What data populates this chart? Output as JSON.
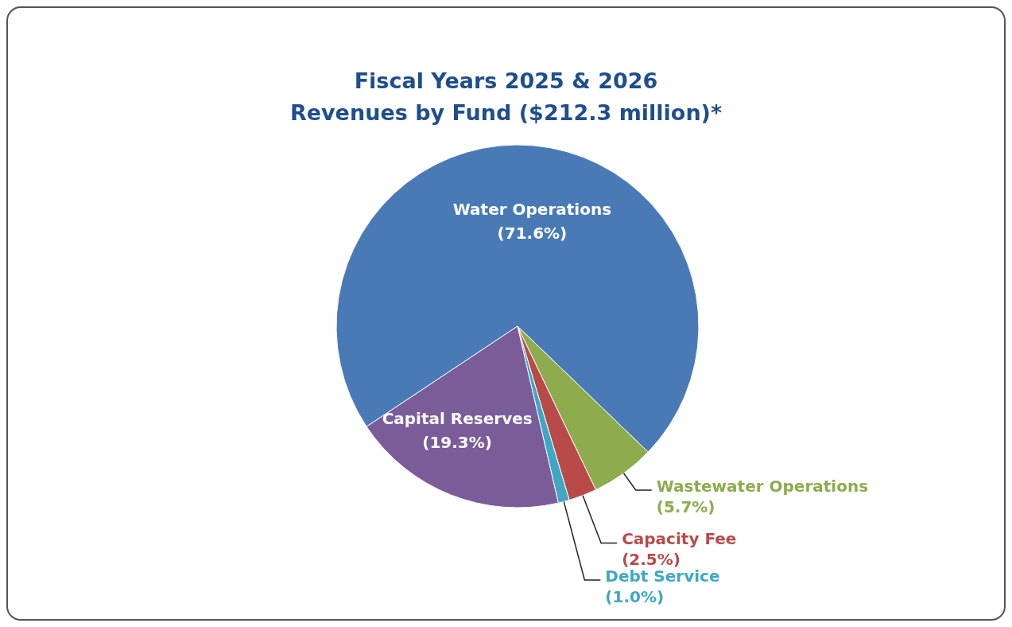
{
  "chart_data": {
    "type": "pie",
    "title": "Fiscal Years 2025 & 2026",
    "subtitle": "Revenues by Fund ($212.3 million)*",
    "categories": [
      "Water Operations",
      "Wastewater Operations",
      "Capacity Fee",
      "Debt Service",
      "Capital Reserves"
    ],
    "values": [
      71.6,
      5.7,
      2.5,
      1.0,
      19.3
    ],
    "colors": [
      "#4a7ab5",
      "#8cac4e",
      "#b84a47",
      "#3fa7c4",
      "#7a5c98"
    ],
    "value_labels": [
      "(71.6%)",
      "(5.7%)",
      "(2.5%)",
      "(1.0%)",
      "(19.3%)"
    ],
    "legend": false
  }
}
